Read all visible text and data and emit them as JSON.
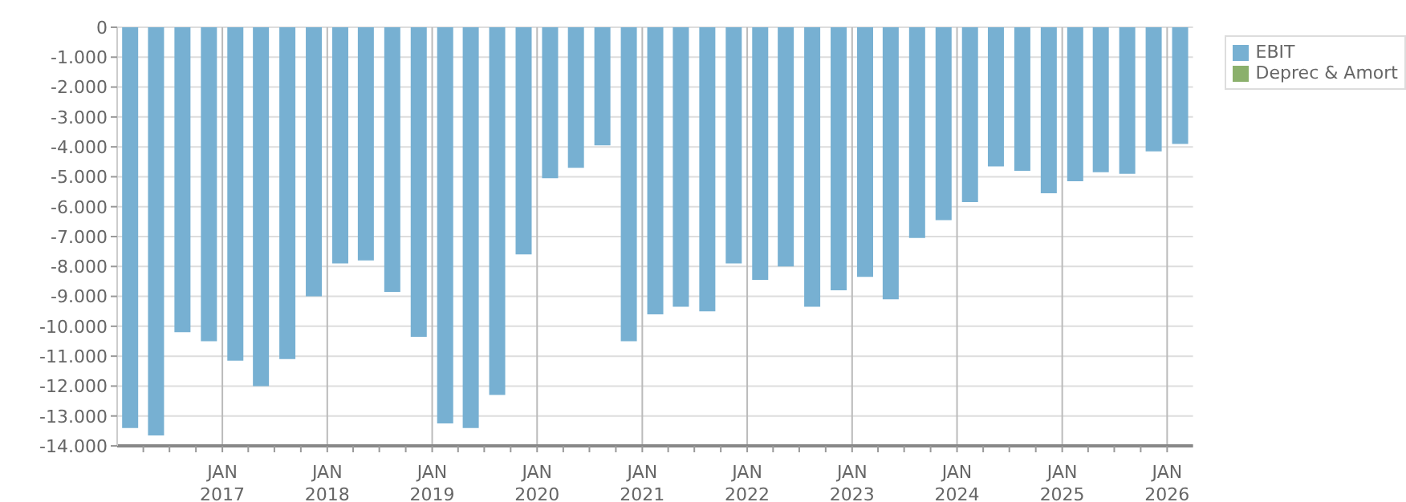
{
  "chart_data": {
    "type": "bar",
    "x": [
      "2016-02-15",
      "2016-05-15",
      "2016-08-15",
      "2016-11-15",
      "2017-02-15",
      "2017-05-15",
      "2017-08-15",
      "2017-11-15",
      "2018-02-15",
      "2018-05-15",
      "2018-08-15",
      "2018-11-15",
      "2019-02-15",
      "2019-05-15",
      "2019-08-15",
      "2019-11-15",
      "2020-02-15",
      "2020-05-15",
      "2020-08-15",
      "2020-11-15",
      "2021-02-15",
      "2021-05-15",
      "2021-08-15",
      "2021-11-15",
      "2022-02-15",
      "2022-05-15",
      "2022-08-15",
      "2022-11-15",
      "2023-02-15",
      "2023-05-15",
      "2023-08-15",
      "2023-11-15",
      "2024-02-15",
      "2024-05-15",
      "2024-08-15",
      "2024-11-15",
      "2025-02-15",
      "2025-05-15",
      "2025-08-15",
      "2025-11-15",
      "2026-02-15"
    ],
    "series": [
      {
        "name": "EBIT",
        "color": "#77b0d2",
        "values": [
          -13400,
          -13650,
          -10200,
          -10500,
          -11150,
          -12000,
          -11100,
          -9000,
          -7900,
          -7800,
          -8850,
          -10350,
          -13250,
          -13400,
          -12300,
          -7600,
          -5050,
          -4700,
          -3950,
          -10500,
          -9600,
          -9350,
          -9500,
          -7900,
          -8450,
          -8000,
          -9350,
          -8800,
          -8350,
          -9100,
          -7050,
          -6450,
          -5850,
          -4650,
          -4800,
          -5550,
          -5150,
          -4850,
          -4900,
          -4150,
          -3900
        ]
      },
      {
        "name": "Deprec & Amort",
        "color": "#8bb06c",
        "values": [
          null,
          null,
          null,
          null,
          null,
          null,
          null,
          null,
          null,
          null,
          null,
          null,
          null,
          null,
          null,
          null,
          null,
          null,
          null,
          null,
          null,
          null,
          null,
          null,
          null,
          null,
          null,
          null,
          null,
          null,
          null,
          null,
          null,
          null,
          null,
          null,
          null,
          null,
          null,
          null,
          null
        ]
      }
    ],
    "xlim": [
      "2016-01-01",
      "2026-04-01"
    ],
    "xticks": [
      {
        "value": "2016-04-01",
        "label": null
      },
      {
        "value": "2016-07-01",
        "label": null
      },
      {
        "value": "2016-10-01",
        "label": null
      },
      {
        "value": "2017-01-01",
        "label": "JAN\n2017"
      },
      {
        "value": "2017-04-01",
        "label": null
      },
      {
        "value": "2017-07-01",
        "label": null
      },
      {
        "value": "2017-10-01",
        "label": null
      },
      {
        "value": "2018-01-01",
        "label": "JAN\n2018"
      },
      {
        "value": "2018-04-01",
        "label": null
      },
      {
        "value": "2018-07-01",
        "label": null
      },
      {
        "value": "2018-10-01",
        "label": null
      },
      {
        "value": "2019-01-01",
        "label": "JAN\n2019"
      },
      {
        "value": "2019-04-01",
        "label": null
      },
      {
        "value": "2019-07-01",
        "label": null
      },
      {
        "value": "2019-10-01",
        "label": null
      },
      {
        "value": "2020-01-01",
        "label": "JAN\n2020"
      },
      {
        "value": "2020-04-01",
        "label": null
      },
      {
        "value": "2020-07-01",
        "label": null
      },
      {
        "value": "2020-10-01",
        "label": null
      },
      {
        "value": "2021-01-01",
        "label": "JAN\n2021"
      },
      {
        "value": "2021-04-01",
        "label": null
      },
      {
        "value": "2021-07-01",
        "label": null
      },
      {
        "value": "2021-10-01",
        "label": null
      },
      {
        "value": "2022-01-01",
        "label": "JAN\n2022"
      },
      {
        "value": "2022-04-01",
        "label": null
      },
      {
        "value": "2022-07-01",
        "label": null
      },
      {
        "value": "2022-10-01",
        "label": null
      },
      {
        "value": "2023-01-01",
        "label": "JAN\n2023"
      },
      {
        "value": "2023-04-01",
        "label": null
      },
      {
        "value": "2023-07-01",
        "label": null
      },
      {
        "value": "2023-10-01",
        "label": null
      },
      {
        "value": "2024-01-01",
        "label": "JAN\n2024"
      },
      {
        "value": "2024-04-01",
        "label": null
      },
      {
        "value": "2024-07-01",
        "label": null
      },
      {
        "value": "2024-10-01",
        "label": null
      },
      {
        "value": "2025-01-01",
        "label": "JAN\n2025"
      },
      {
        "value": "2025-04-01",
        "label": null
      },
      {
        "value": "2025-07-01",
        "label": null
      },
      {
        "value": "2025-10-01",
        "label": null
      },
      {
        "value": "2026-01-01",
        "label": "JAN\n2026"
      }
    ],
    "ylim": [
      -14000,
      0
    ],
    "yticks": [
      {
        "value": -14000,
        "label": "-14.000"
      },
      {
        "value": -13000,
        "label": "-13.000"
      },
      {
        "value": -12000,
        "label": "-12.000"
      },
      {
        "value": -11000,
        "label": "-11.000"
      },
      {
        "value": -10000,
        "label": "-10.000"
      },
      {
        "value": -9000,
        "label": "-9.000"
      },
      {
        "value": -8000,
        "label": "-8.000"
      },
      {
        "value": -7000,
        "label": "-7.000"
      },
      {
        "value": -6000,
        "label": "-6.000"
      },
      {
        "value": -5000,
        "label": "-5.000"
      },
      {
        "value": -4000,
        "label": "-4.000"
      },
      {
        "value": -3000,
        "label": "-3.000"
      },
      {
        "value": -2000,
        "label": "-2.000"
      },
      {
        "value": -1000,
        "label": "-1.000"
      },
      0
    ],
    "grid": true,
    "legend": "top right"
  }
}
